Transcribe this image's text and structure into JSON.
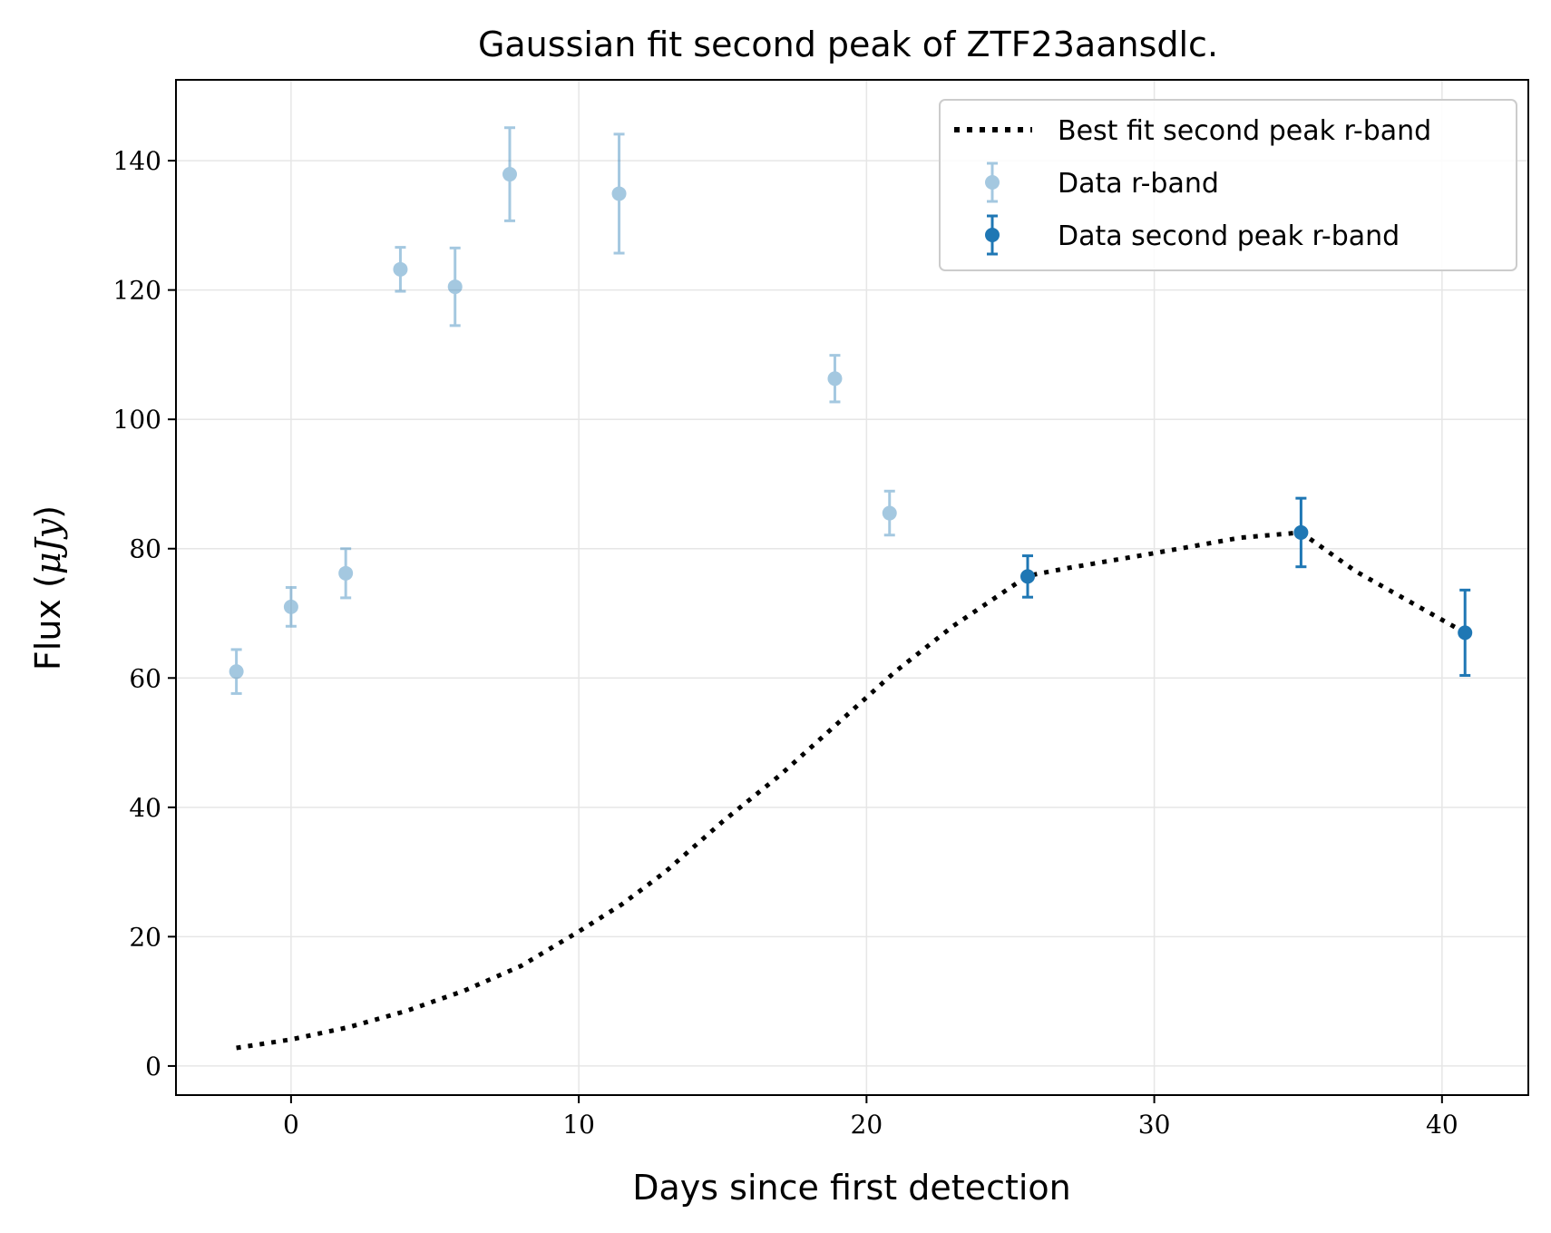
{
  "chart_data": {
    "type": "scatter",
    "title": "Gaussian fit second peak of ZTF23aansdlc.",
    "xlabel": "Days since first detection",
    "ylabel_text": "Flux (",
    "ylabel_unit": "μJy",
    "ylabel_close": ")",
    "xlim": [
      -4,
      43
    ],
    "ylim": [
      -4.5,
      152.5
    ],
    "xticks": [
      0,
      10,
      20,
      30,
      40
    ],
    "yticks": [
      0,
      20,
      40,
      60,
      80,
      100,
      120,
      140
    ],
    "grid": true,
    "legend_position": "top-right",
    "series": [
      {
        "name": "Best fit second peak r-band",
        "kind": "line",
        "style": "dotted",
        "color": "#000000",
        "x": [
          -1.9,
          0,
          2,
          4,
          6,
          8,
          10,
          11.5,
          13,
          15,
          17,
          19,
          21,
          23,
          25.6,
          27,
          30,
          33,
          35.1,
          37,
          40.8
        ],
        "y": [
          2.8,
          4.1,
          6.0,
          8.5,
          11.6,
          15.5,
          20.8,
          25.0,
          30.0,
          37.8,
          45.0,
          53.0,
          61.0,
          68.0,
          75.8,
          77.0,
          79.3,
          81.7,
          82.5,
          76.5,
          67.0
        ]
      },
      {
        "name": "Data r-band",
        "kind": "points",
        "color": "#1f77b4",
        "opacity": 0.4,
        "x": [
          -1.9,
          0,
          1.9,
          3.8,
          5.7,
          7.6,
          11.4,
          18.9,
          20.8
        ],
        "y": [
          61,
          71,
          76.2,
          123.2,
          120.5,
          137.9,
          134.9,
          106.3,
          85.5
        ],
        "yerr": [
          3.4,
          3.0,
          3.8,
          3.4,
          6.0,
          7.2,
          9.2,
          3.6,
          3.4
        ]
      },
      {
        "name": "Data second peak r-band",
        "kind": "points",
        "color": "#1f77b4",
        "opacity": 1.0,
        "x": [
          25.6,
          35.1,
          40.8
        ],
        "y": [
          75.7,
          82.5,
          67.0
        ],
        "yerr": [
          3.2,
          5.3,
          6.6
        ]
      }
    ]
  }
}
